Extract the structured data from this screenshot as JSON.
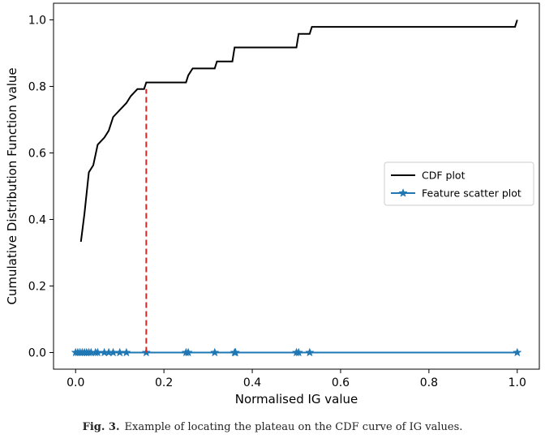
{
  "colors": {
    "cdf_line": "#000000",
    "scatter": "#1f77b4",
    "plateau_marker": "#d62728"
  },
  "caption": {
    "figure_number": "Fig. 3.",
    "text": "Example of locating the plateau on the CDF curve of IG values."
  },
  "chart_data": {
    "type": "line",
    "title": "",
    "xlabel": "Normalised IG value",
    "ylabel": "Cumulative Distribution Function value",
    "xlim": [
      -0.05,
      1.05
    ],
    "ylim": [
      -0.05,
      1.05
    ],
    "xticks": [
      0.0,
      0.2,
      0.4,
      0.6,
      0.8,
      1.0
    ],
    "yticks": [
      0.0,
      0.2,
      0.4,
      0.6,
      0.8,
      1.0
    ],
    "xtick_labels": [
      "0.0",
      "0.2",
      "0.4",
      "0.6",
      "0.8",
      "1.0"
    ],
    "ytick_labels": [
      "0.0",
      "0.2",
      "0.4",
      "0.6",
      "0.8",
      "1.0"
    ],
    "grid": false,
    "legend_position": "center-right",
    "series": [
      {
        "name": "CDF plot",
        "style": "line",
        "color": "#000000",
        "x": [
          0.012,
          0.02,
          0.03,
          0.04,
          0.05,
          0.065,
          0.075,
          0.085,
          0.1,
          0.115,
          0.125,
          0.14,
          0.155,
          0.16,
          0.2,
          0.25,
          0.255,
          0.265,
          0.3,
          0.315,
          0.32,
          0.355,
          0.36,
          0.4,
          0.45,
          0.5,
          0.505,
          0.53,
          0.535,
          0.6,
          0.8,
          0.995,
          1.0
        ],
        "y": [
          0.333,
          0.417,
          0.542,
          0.563,
          0.625,
          0.646,
          0.667,
          0.708,
          0.729,
          0.75,
          0.771,
          0.792,
          0.792,
          0.812,
          0.812,
          0.812,
          0.833,
          0.854,
          0.854,
          0.854,
          0.875,
          0.875,
          0.917,
          0.917,
          0.917,
          0.917,
          0.958,
          0.958,
          0.979,
          0.979,
          0.979,
          0.979,
          1.0
        ]
      },
      {
        "name": "Feature scatter plot",
        "style": "line+star",
        "color": "#1f77b4",
        "x": [
          0.0,
          0.005,
          0.01,
          0.015,
          0.02,
          0.025,
          0.03,
          0.035,
          0.045,
          0.05,
          0.065,
          0.075,
          0.085,
          0.1,
          0.115,
          0.16,
          0.25,
          0.255,
          0.315,
          0.36,
          0.362,
          0.5,
          0.505,
          0.53,
          1.0
        ],
        "y": [
          0,
          0,
          0,
          0,
          0,
          0,
          0,
          0,
          0,
          0,
          0,
          0,
          0,
          0,
          0,
          0,
          0,
          0,
          0,
          0,
          0,
          0,
          0,
          0,
          0
        ]
      }
    ],
    "annotations": [
      {
        "type": "vertical-dashed-line",
        "color": "#d62728",
        "x": 0.16,
        "y_from": 0.0,
        "y_to": 0.792
      }
    ]
  }
}
